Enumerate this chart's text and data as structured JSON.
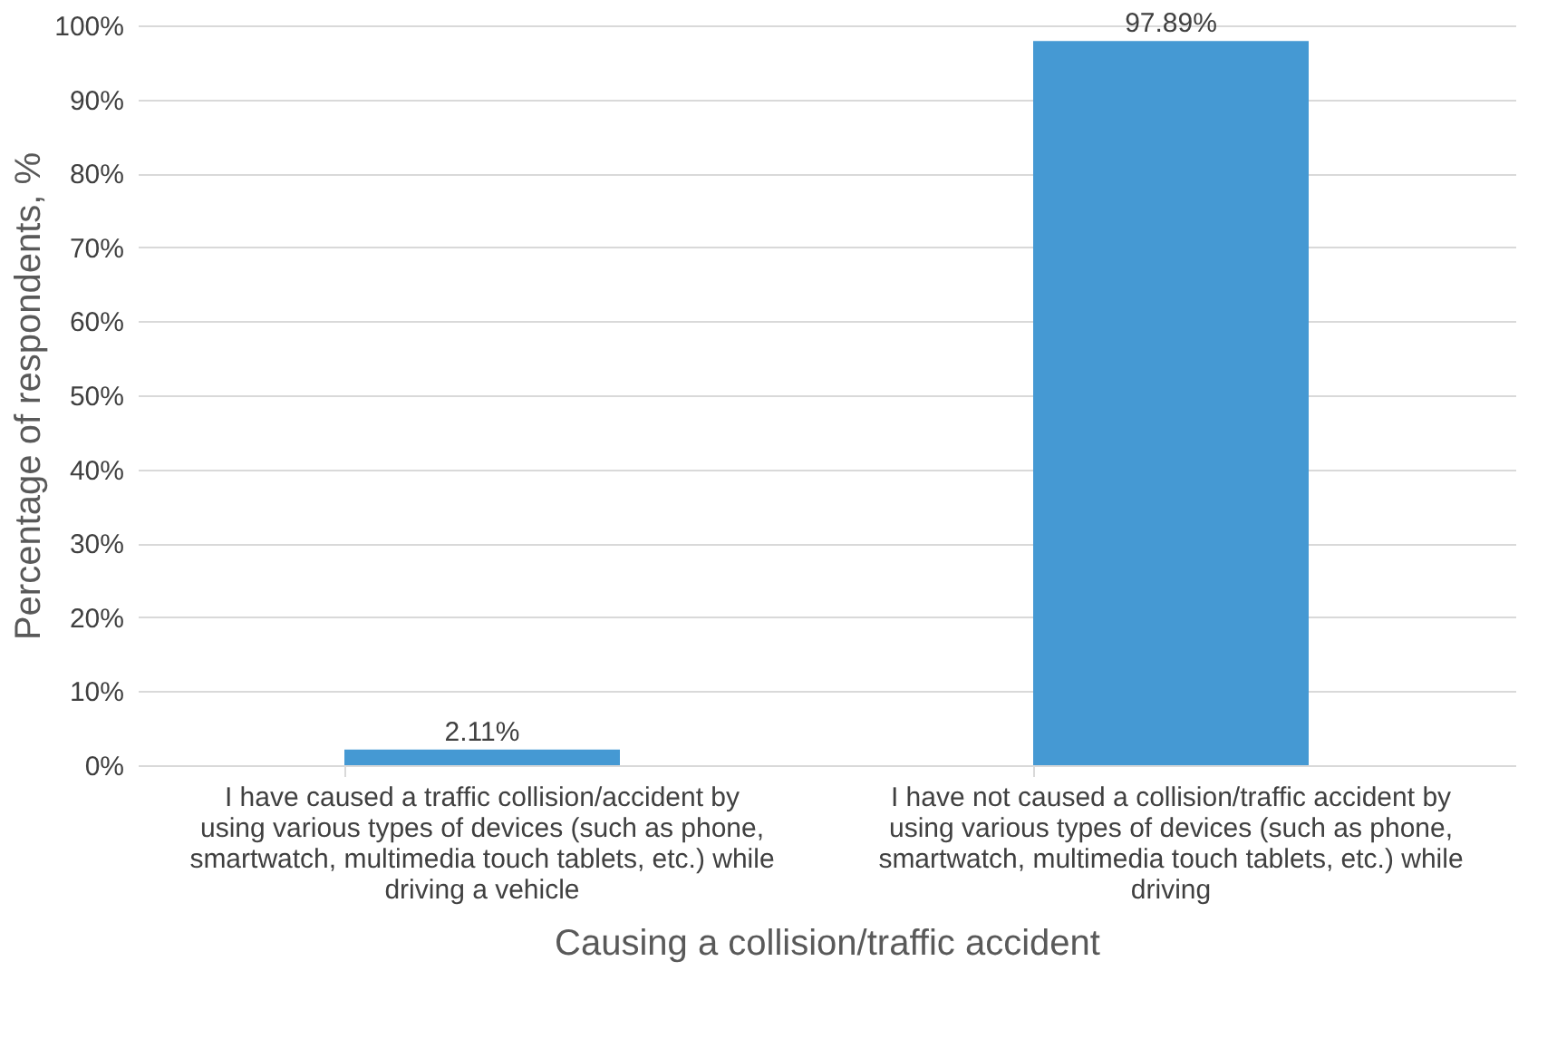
{
  "chart_data": {
    "type": "bar",
    "xlabel": "Causing a collision/traffic accident",
    "ylabel": "Percentage of respondents, %",
    "categories": [
      "I have caused a traffic collision/accident by using various types of devices (such as phone, smartwatch, multimedia touch tablets, etc.) while driving a vehicle",
      "I have not caused a collision/traffic accident by using various types of devices (such as phone, smartwatch, multimedia touch tablets, etc.) while driving"
    ],
    "values": [
      2.11,
      97.89
    ],
    "value_labels": [
      "2.11%",
      "97.89%"
    ],
    "color": "#4599d3",
    "ylim": [
      0,
      100
    ],
    "yticks": [
      {
        "value": 0,
        "label": "0%"
      },
      {
        "value": 10,
        "label": "10%"
      },
      {
        "value": 20,
        "label": "20%"
      },
      {
        "value": 30,
        "label": "30%"
      },
      {
        "value": 40,
        "label": "40%"
      },
      {
        "value": 50,
        "label": "50%"
      },
      {
        "value": 60,
        "label": "60%"
      },
      {
        "value": 70,
        "label": "70%"
      },
      {
        "value": 80,
        "label": "80%"
      },
      {
        "value": 90,
        "label": "90%"
      },
      {
        "value": 100,
        "label": "100%"
      }
    ],
    "grid": "y"
  }
}
